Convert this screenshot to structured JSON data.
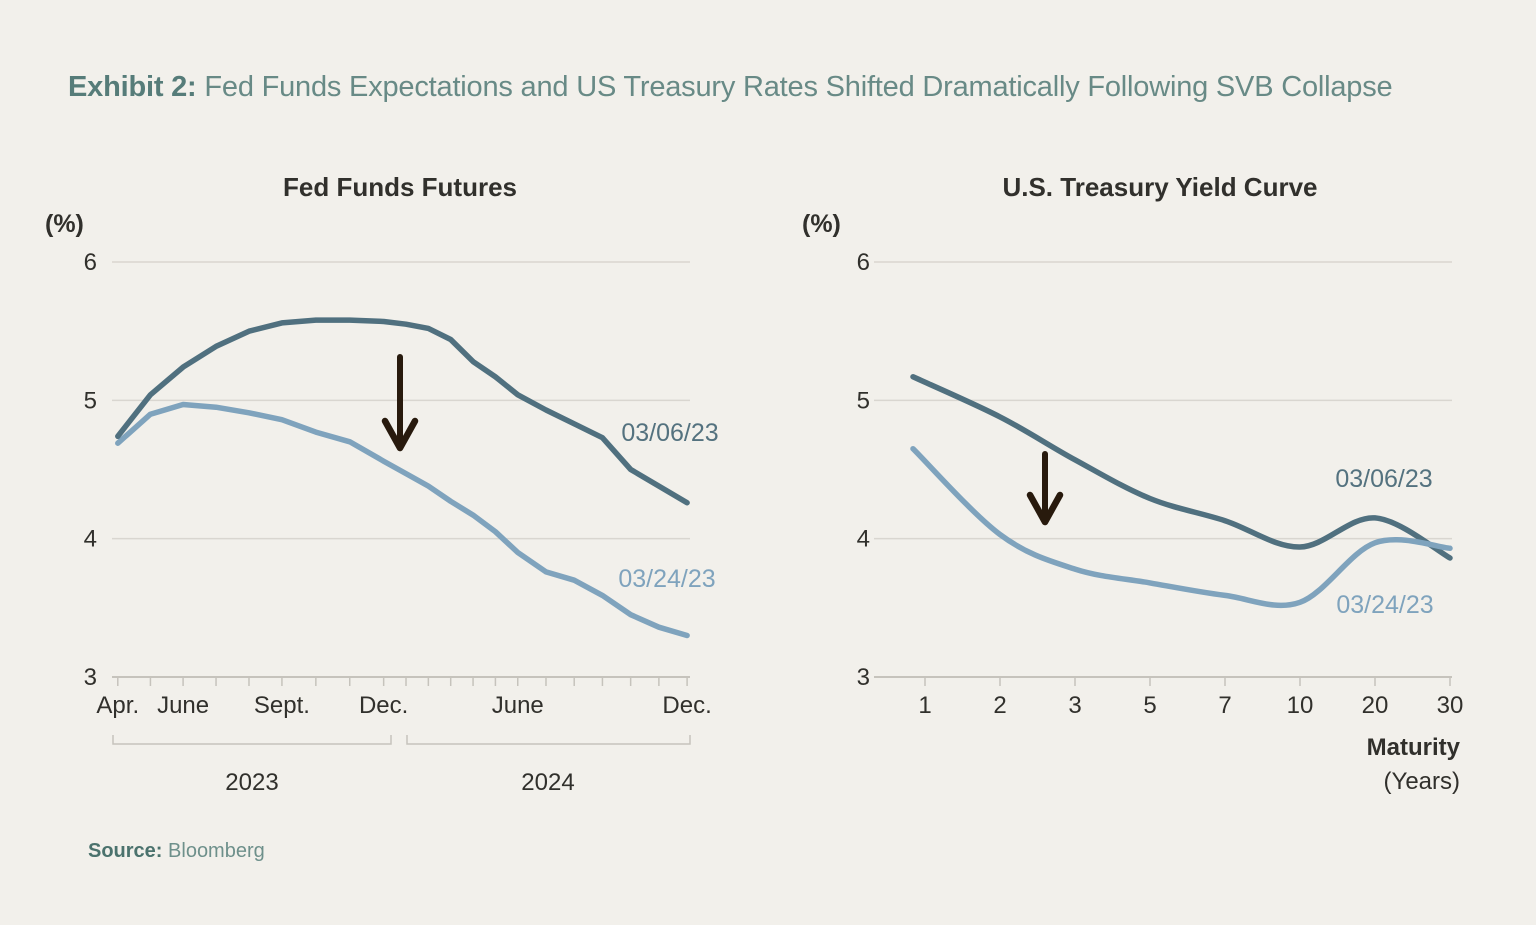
{
  "page": {
    "background": "#f2f0eb",
    "title_prefix": "Exhibit 2:",
    "title_rest": "Fed Funds Expectations and US Treasury Rates Shifted Dramatically Following SVB Collapse",
    "source_label": "Source:",
    "source_value": "Bloomberg"
  },
  "colors": {
    "title_prefix": "#567c79",
    "title_rest": "#688a86",
    "text_dark": "#31302c",
    "gridline": "#d9d6d0",
    "axis": "#c6c3bc",
    "arrow": "#281a0d",
    "series_dark": "#50707f",
    "series_light": "#7fa3bd",
    "source_label": "#4b726d",
    "source_value": "#6e908b"
  },
  "chart_data": [
    {
      "type": "line",
      "title": "Fed Funds Futures",
      "y_axis_unit": "(%)",
      "ylim": [
        3,
        6
      ],
      "y_ticks": [
        6,
        5,
        4,
        3
      ],
      "grid": true,
      "x_months": [
        "Apr 2023",
        "May 2023",
        "June 2023",
        "July 2023",
        "Aug 2023",
        "Sept 2023",
        "Oct 2023",
        "Nov 2023",
        "Dec 2023",
        "Jan 2024",
        "Feb 2024",
        "Mar 2024",
        "Apr 2024",
        "May 2024",
        "June 2024",
        "July 2024",
        "Aug 2024",
        "Sept 2024",
        "Oct 2024",
        "Nov 2024",
        "Dec 2024"
      ],
      "x_tick_labels": [
        {
          "text": "Apr.",
          "month": 0
        },
        {
          "text": "June",
          "month": 2
        },
        {
          "text": "Sept.",
          "month": 5
        },
        {
          "text": "Dec.",
          "month": 8
        },
        {
          "text": "June",
          "month": 14
        },
        {
          "text": "Dec.",
          "month": 20
        }
      ],
      "year_groups": [
        {
          "label": "2023"
        },
        {
          "label": "2024"
        }
      ],
      "series": [
        {
          "name": "03/06/23",
          "color": "#50707f",
          "values": [
            4.74,
            5.04,
            5.24,
            5.39,
            5.5,
            5.56,
            5.58,
            5.58,
            5.57,
            5.55,
            5.52,
            5.44,
            5.28,
            5.17,
            5.04,
            4.93,
            4.83,
            4.73,
            4.5,
            4.38,
            4.26
          ]
        },
        {
          "name": "03/24/23",
          "color": "#7fa3bd",
          "values": [
            4.69,
            4.9,
            4.97,
            4.95,
            4.91,
            4.86,
            4.77,
            4.7,
            4.56,
            4.47,
            4.38,
            4.27,
            4.17,
            4.05,
            3.9,
            3.76,
            3.7,
            3.59,
            3.45,
            3.36,
            3.3
          ]
        }
      ],
      "annotation": "down-arrow"
    },
    {
      "type": "line",
      "title": "U.S. Treasury Yield Curve",
      "y_axis_unit": "(%)",
      "x_axis_label": "Maturity",
      "x_axis_sublabel": "(Years)",
      "ylim": [
        3,
        6
      ],
      "y_ticks": [
        6,
        5,
        4,
        3
      ],
      "grid": true,
      "x_maturities": [
        1,
        2,
        3,
        5,
        7,
        10,
        20,
        30
      ],
      "series": [
        {
          "name": "03/06/23",
          "color": "#50707f",
          "values": [
            5.17,
            4.88,
            4.57,
            4.29,
            4.13,
            3.94,
            4.15,
            3.86
          ]
        },
        {
          "name": "03/24/23",
          "color": "#7fa3bd",
          "values": [
            4.65,
            4.03,
            3.78,
            3.68,
            3.59,
            3.54,
            3.97,
            3.93
          ]
        }
      ],
      "annotation": "down-arrow"
    }
  ]
}
